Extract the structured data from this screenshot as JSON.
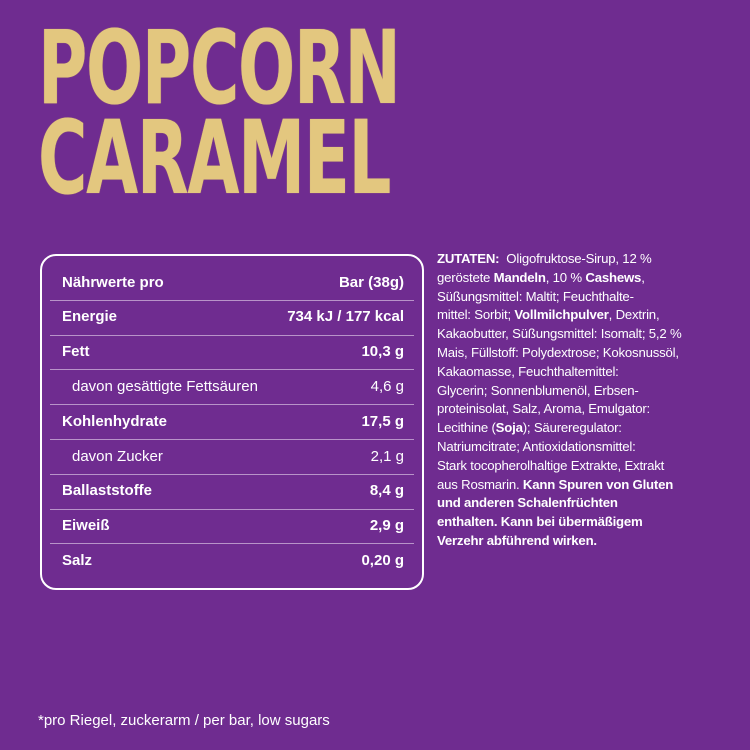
{
  "title": {
    "line1": "POPCORN",
    "line2": "CARAMEL",
    "color": "#e3c77f"
  },
  "background_color": "#6f2c90",
  "nutrition": {
    "header": {
      "label": "Nährwerte pro",
      "value": "Bar (38g)"
    },
    "rows": [
      {
        "label": "Energie",
        "value": "734 kJ / 177 kcal",
        "bold": true
      },
      {
        "label": "Fett",
        "value": "10,3 g",
        "bold": true
      },
      {
        "label": "davon gesättigte Fettsäuren",
        "value": "4,6 g",
        "bold": false
      },
      {
        "label": "Kohlenhydrate",
        "value": "17,5 g",
        "bold": true
      },
      {
        "label": "davon Zucker",
        "value": "2,1 g",
        "bold": false
      },
      {
        "label": "Ballaststoffe",
        "value": "8,4 g",
        "bold": true
      },
      {
        "label": "Eiweiß",
        "value": "2,9 g",
        "bold": true
      },
      {
        "label": "Salz",
        "value": "0,20 g",
        "bold": true
      }
    ]
  },
  "ingredients": {
    "lines": [
      [
        {
          "t": "ZUTATEN:",
          "b": true
        },
        {
          "t": "  Oligofruktose-Sirup, 12 %",
          "b": false
        }
      ],
      [
        {
          "t": "geröstete ",
          "b": false
        },
        {
          "t": "Mandeln",
          "b": true
        },
        {
          "t": ", 10 % ",
          "b": false
        },
        {
          "t": "Cashews",
          "b": true
        },
        {
          "t": ",",
          "b": false
        }
      ],
      [
        {
          "t": "Süßungsmittel: Maltit; Feuchthalte-",
          "b": false
        }
      ],
      [
        {
          "t": "mittel: Sorbit; ",
          "b": false
        },
        {
          "t": "Vollmilchpulver",
          "b": true
        },
        {
          "t": ", Dextrin,",
          "b": false
        }
      ],
      [
        {
          "t": "Kakaobutter, Süßungsmittel: Isomalt; 5,2 %",
          "b": false
        }
      ],
      [
        {
          "t": "Mais, Füllstoff: Polydextrose; Kokosnussöl,",
          "b": false
        }
      ],
      [
        {
          "t": "Kakaomasse, Feuchthaltemittel:",
          "b": false
        }
      ],
      [
        {
          "t": "Glycerin; Sonnenblumenöl, Erbsen-",
          "b": false
        }
      ],
      [
        {
          "t": "proteinisolat, Salz, Aroma, Emulgator:",
          "b": false
        }
      ],
      [
        {
          "t": "Lecithine (",
          "b": false
        },
        {
          "t": "Soja",
          "b": true
        },
        {
          "t": "); Säureregulator:",
          "b": false
        }
      ],
      [
        {
          "t": "Natriumcitrate; Antioxidationsmittel:",
          "b": false
        }
      ],
      [
        {
          "t": "Stark tocopherolhaltige Extrakte, Extrakt",
          "b": false
        }
      ],
      [
        {
          "t": "aus Rosmarin. ",
          "b": false
        },
        {
          "t": "Kann Spuren von Gluten",
          "b": true
        }
      ],
      [
        {
          "t": "und anderen Schalenfrüchten",
          "b": true
        }
      ],
      [
        {
          "t": "enthalten. Kann bei übermäßigem",
          "b": true
        }
      ],
      [
        {
          "t": "Verzehr abführend wirken.",
          "b": true
        }
      ]
    ]
  },
  "footnote": "*pro Riegel, zuckerarm / per bar, low sugars"
}
